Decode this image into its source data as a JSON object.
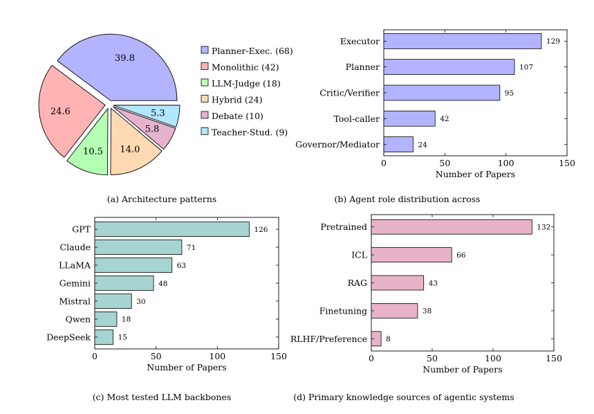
{
  "chart_data": [
    {
      "id": "a",
      "type": "pie",
      "caption": "(a) Architecture patterns",
      "slices": [
        {
          "label": "Planner-Exec. (68)",
          "value": 39.8,
          "display": "39.8",
          "color": "#b3b3ff"
        },
        {
          "label": "Monolithic (42)",
          "value": 24.6,
          "display": "24.6",
          "color": "#ffb3b3"
        },
        {
          "label": "LLM-Judge (18)",
          "value": 10.5,
          "display": "10.5",
          "color": "#b3ffb3"
        },
        {
          "label": "Hybrid (24)",
          "value": 14.0,
          "display": "14.0",
          "color": "#ffd9b3"
        },
        {
          "label": "Debate (10)",
          "value": 5.8,
          "display": "5.8",
          "color": "#e6b3cc"
        },
        {
          "label": "Teacher-Stud. (9)",
          "value": 5.3,
          "display": "5.3",
          "color": "#b3e6ff"
        }
      ]
    },
    {
      "id": "b",
      "type": "bar",
      "orientation": "horizontal",
      "caption": "(b) Agent role distribution across",
      "xlabel": "Number of Papers",
      "xlim": [
        0,
        150
      ],
      "xticks": [
        "0",
        "50",
        "100",
        "150"
      ],
      "bar_color": "#b3b3ff",
      "categories": [
        "Executor",
        "Planner",
        "Critic/Verifier",
        "Tool-caller",
        "Governor/Mediator"
      ],
      "values": [
        129,
        107,
        95,
        42,
        24
      ]
    },
    {
      "id": "c",
      "type": "bar",
      "orientation": "horizontal",
      "caption": "(c) Most tested LLM backbones",
      "xlabel": "Number of Papers",
      "xlim": [
        0,
        150
      ],
      "xticks": [
        "0",
        "50",
        "100",
        "150"
      ],
      "bar_color": "#a6d4d0",
      "categories": [
        "GPT",
        "Claude",
        "LLaMA",
        "Gemini",
        "Mistral",
        "Qwen",
        "DeepSeek"
      ],
      "values": [
        126,
        71,
        63,
        48,
        30,
        18,
        15
      ]
    },
    {
      "id": "d",
      "type": "bar",
      "orientation": "horizontal",
      "caption": "(d) Primary knowledge sources of agentic systems",
      "xlabel": "Number of Papers",
      "xlim": [
        0,
        150
      ],
      "xticks": [
        "0",
        "50",
        "100",
        "150"
      ],
      "bar_color": "#e8b3c8",
      "categories": [
        "Pretrained",
        "ICL",
        "RAG",
        "Finetuning",
        "RLHF/Preference"
      ],
      "values": [
        132,
        66,
        43,
        38,
        8
      ]
    }
  ]
}
